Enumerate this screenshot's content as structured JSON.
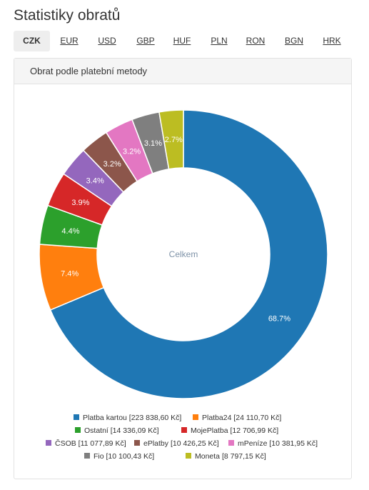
{
  "page": {
    "title": "Statistiky obratů"
  },
  "currency_tabs": [
    {
      "label": "CZK",
      "active": true
    },
    {
      "label": "EUR",
      "active": false
    },
    {
      "label": "USD",
      "active": false
    },
    {
      "label": "GBP",
      "active": false
    },
    {
      "label": "HUF",
      "active": false
    },
    {
      "label": "PLN",
      "active": false
    },
    {
      "label": "RON",
      "active": false
    },
    {
      "label": "BGN",
      "active": false
    },
    {
      "label": "HRK",
      "active": false
    }
  ],
  "panel": {
    "title": "Obrat podle platební metody"
  },
  "chart_data": {
    "type": "pie",
    "variant": "donut",
    "center_label": "Celkem",
    "legend_position": "bottom",
    "series": [
      {
        "name": "Platba kartou",
        "amount": "223 838,60 Kč",
        "percent": 68.7,
        "percent_label": "68.7%",
        "color": "#1f77b4"
      },
      {
        "name": "Platba24",
        "amount": "24 110,70 Kč",
        "percent": 7.4,
        "percent_label": "7.4%",
        "color": "#ff7f0e"
      },
      {
        "name": "Ostatní",
        "amount": "14 336,09 Kč",
        "percent": 4.4,
        "percent_label": "4.4%",
        "color": "#2ca02c"
      },
      {
        "name": "MojePlatba",
        "amount": "12 706,99 Kč",
        "percent": 3.9,
        "percent_label": "3.9%",
        "color": "#d62728"
      },
      {
        "name": "ČSOB",
        "amount": "11 077,89 Kč",
        "percent": 3.4,
        "percent_label": "3.4%",
        "color": "#9467bd"
      },
      {
        "name": "ePlatby",
        "amount": "10 426,25 Kč",
        "percent": 3.2,
        "percent_label": "3.2%",
        "color": "#8c564b"
      },
      {
        "name": "mPeníze",
        "amount": "10 381,95 Kč",
        "percent": 3.2,
        "percent_label": "3.2%",
        "color": "#e377c2"
      },
      {
        "name": "Fio",
        "amount": "10 100,43 Kč",
        "percent": 3.1,
        "percent_label": "3.1%",
        "color": "#7f7f7f"
      },
      {
        "name": "Moneta",
        "amount": "8 797,15 Kč",
        "percent": 2.7,
        "percent_label": "2.7%",
        "color": "#bcbd22"
      }
    ]
  }
}
